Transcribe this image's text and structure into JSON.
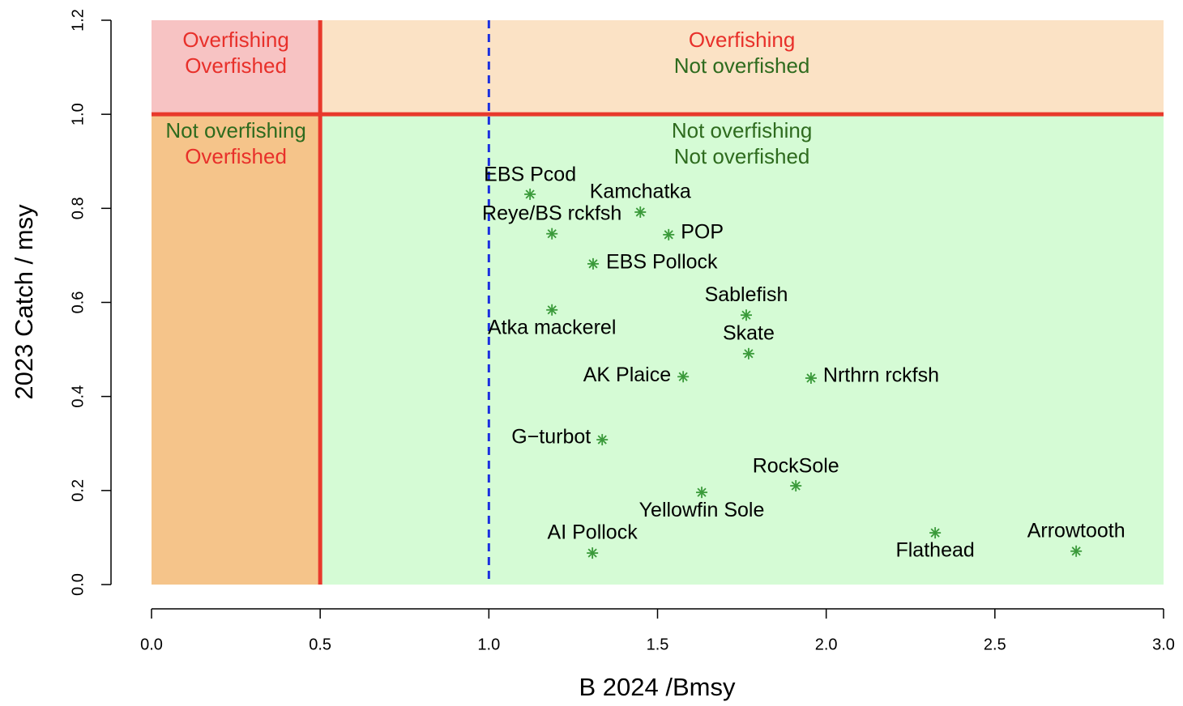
{
  "chart_data": {
    "type": "scatter",
    "xlabel": "B 2024 /Bmsy",
    "ylabel": "2023 Catch / msy",
    "xlim": [
      0,
      3
    ],
    "ylim": [
      0,
      1.2
    ],
    "xticks": [
      {
        "value": 0,
        "label": "0.0"
      },
      0.5,
      {
        "value": 1,
        "label": "1.0"
      },
      1.5,
      {
        "value": 2,
        "label": "2.0"
      },
      2.5,
      {
        "value": 3,
        "label": "3.0"
      }
    ],
    "yticks": [
      {
        "value": 0,
        "label": "0.0"
      },
      0.2,
      0.4,
      0.6,
      0.8,
      {
        "value": 1,
        "label": "1.0"
      },
      1.2
    ],
    "overfished_limit": 0.5,
    "overfishing_limit": 1,
    "target": 1,
    "quadrants": {
      "top_left": [
        "Overfishing",
        "Overfished"
      ],
      "top_right": [
        "Overfishing",
        "Not overfished"
      ],
      "bottom_left": [
        "Not overfishing",
        "Overfished"
      ],
      "bottom_right": [
        "Not overfishing",
        "Not overfished"
      ]
    },
    "color": "#3a9a3a",
    "labels": [
      "EBS Pcod",
      "Kamchatka",
      "Reye/BS rckfsh",
      "POP",
      "EBS Pollock",
      "Atka mackerel",
      "Sablefish",
      "Skate",
      "AK Plaice",
      "Nrthrn rckfsh",
      "G−turbot",
      "RockSole",
      "Yellowfin Sole",
      "Flathead",
      "Arrowtooth",
      "AI Pollock"
    ],
    "x": [
      1.122,
      1.449,
      1.187,
      1.533,
      1.309,
      1.187,
      1.763,
      1.77,
      1.576,
      1.955,
      1.336,
      1.91,
      1.631,
      2.323,
      2.741,
      1.307
    ],
    "values": [
      0.83,
      0.792,
      0.746,
      0.744,
      0.682,
      0.584,
      0.573,
      0.491,
      0.442,
      0.439,
      0.308,
      0.21,
      0.196,
      0.11,
      0.071,
      0.067
    ]
  }
}
